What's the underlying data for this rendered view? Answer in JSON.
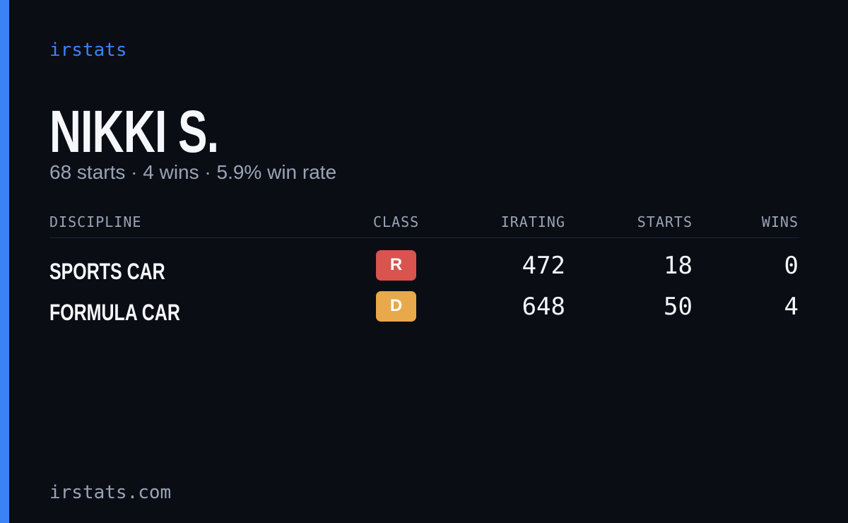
{
  "brand": "irstats",
  "profile": {
    "name": "NIKKI S.",
    "summary": "68 starts · 4 wins · 5.9% win rate"
  },
  "table": {
    "header": [
      "DISCIPLINE",
      "CLASS",
      "IRATING",
      "STARTS",
      "WINS"
    ],
    "rows": [
      [
        "SPORTS CAR",
        "R",
        472,
        18,
        0
      ],
      [
        "FORMULA CAR",
        "D",
        648,
        50,
        4
      ]
    ]
  },
  "footer": "irstats.com"
}
